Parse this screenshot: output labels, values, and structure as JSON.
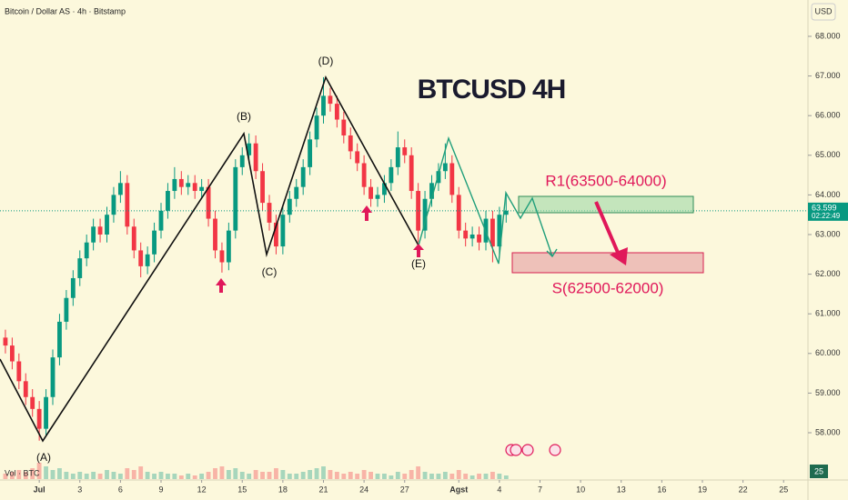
{
  "chart_data": {
    "type": "candlestick",
    "title": "Bitcoin / Dollar AS · 4h · Bitstamp",
    "currency": "USD",
    "annotation": "BTCUSD 4H",
    "resistance_label": "R1(63500-64000)",
    "support_label": "S(62500-62000)",
    "wave_labels": [
      "(A)",
      "(B)",
      "(C)",
      "(D)",
      "(E)"
    ],
    "volume_label": "Vol · BTC",
    "corner_label": "25",
    "last_price": {
      "value": 63599,
      "label": "63.599"
    },
    "countdown": "02:22:49",
    "up_color": "#089981",
    "down_color": "#f23645",
    "grid": false,
    "xlim": [
      -2.9,
      56.8
    ],
    "ylim": [
      57335,
      68917
    ],
    "xticks": [
      {
        "value": 0,
        "label": "Jul"
      },
      3,
      6,
      9,
      12,
      15,
      18,
      21,
      24,
      27,
      {
        "value": 31,
        "label": "Agst"
      },
      {
        "value": 34,
        "label": "4"
      },
      {
        "value": 37,
        "label": "7"
      },
      {
        "value": 40,
        "label": "10"
      },
      {
        "value": 43,
        "label": "13"
      },
      {
        "value": 46,
        "label": "16"
      },
      {
        "value": 49,
        "label": "19"
      },
      {
        "value": 52,
        "label": "22"
      },
      {
        "value": 55,
        "label": "25"
      }
    ],
    "yticks": [
      {
        "value": 58000,
        "label": "58.000"
      },
      {
        "value": 59000,
        "label": "59.000"
      },
      {
        "value": 60000,
        "label": "60.000"
      },
      {
        "value": 61000,
        "label": "61.000"
      },
      {
        "value": 62000,
        "label": "62.000"
      },
      {
        "value": 63000,
        "label": "63.000"
      },
      {
        "value": 64000,
        "label": "64.000"
      },
      {
        "value": 65000,
        "label": "65.000"
      },
      {
        "value": 66000,
        "label": "66.000"
      },
      {
        "value": 67000,
        "label": "67.000"
      },
      {
        "value": 68000,
        "label": "68.000"
      }
    ],
    "x": [
      -2.5,
      -2,
      -1.5,
      -1,
      -0.5,
      0,
      0.5,
      1,
      1.5,
      2,
      2.5,
      3,
      3.5,
      4,
      4.5,
      5,
      5.5,
      6,
      6.5,
      7,
      7.5,
      8,
      8.5,
      9,
      9.5,
      10,
      10.5,
      11,
      11.5,
      12,
      12.5,
      13,
      13.5,
      14,
      14.5,
      15,
      15.5,
      16,
      16.5,
      17,
      17.5,
      18,
      18.5,
      19,
      19.5,
      20,
      20.5,
      21,
      21.5,
      22,
      22.5,
      23,
      23.5,
      24,
      24.5,
      25,
      25.5,
      26,
      26.5,
      27,
      27.5,
      28,
      28.5,
      29,
      29.5,
      30,
      30.5,
      31,
      31.5,
      32,
      32.5,
      33,
      33.5,
      34,
      34.5
    ],
    "open": [
      60400,
      60200,
      59800,
      59300,
      58900,
      58600,
      58100,
      58900,
      59900,
      60800,
      61400,
      61900,
      62400,
      62800,
      63200,
      63000,
      63500,
      64000,
      64300,
      63200,
      62600,
      62200,
      62500,
      63100,
      63600,
      64100,
      64400,
      64200,
      64300,
      64100,
      64200,
      63400,
      62600,
      62300,
      63100,
      64700,
      65000,
      65300,
      64600,
      63800,
      63300,
      62700,
      63500,
      63900,
      64200,
      64700,
      65400,
      66000,
      66500,
      66300,
      65900,
      65500,
      65100,
      64800,
      64200,
      63900,
      64000,
      64300,
      64700,
      65200,
      65000,
      64100,
      63100,
      63900,
      64300,
      64600,
      64800,
      64000,
      63100,
      62900,
      63000,
      62800,
      63400,
      62700,
      63500
    ],
    "high": [
      60600,
      60400,
      60000,
      59500,
      59100,
      58800,
      59100,
      60100,
      61000,
      61600,
      62100,
      62600,
      63000,
      63400,
      63400,
      63700,
      64200,
      64600,
      64500,
      63400,
      62800,
      62700,
      63300,
      63800,
      64300,
      64700,
      64600,
      64500,
      64500,
      64400,
      64400,
      63600,
      62800,
      63300,
      64900,
      65200,
      65550,
      65500,
      64800,
      64000,
      63500,
      63700,
      64100,
      64400,
      64900,
      65600,
      66200,
      66970,
      66700,
      66500,
      66100,
      65700,
      65300,
      65000,
      64400,
      64200,
      64500,
      64900,
      65600,
      65400,
      65200,
      64300,
      64100,
      64500,
      64800,
      65300,
      65000,
      64200,
      63300,
      63200,
      63200,
      63600,
      63600,
      63700,
      64000
    ],
    "low": [
      60000,
      59600,
      59100,
      58700,
      58400,
      57800,
      57900,
      58700,
      59700,
      60600,
      61200,
      61700,
      62200,
      62600,
      62800,
      62800,
      63300,
      63800,
      63000,
      62400,
      61920,
      62000,
      62300,
      62900,
      63400,
      63900,
      64000,
      64000,
      63900,
      63900,
      63200,
      62400,
      62040,
      62100,
      62900,
      64500,
      64800,
      64400,
      63600,
      63100,
      62500,
      62500,
      63300,
      63700,
      64000,
      64500,
      65200,
      65800,
      66100,
      65700,
      65300,
      64900,
      64600,
      64000,
      63700,
      63700,
      63800,
      64100,
      64500,
      64800,
      63900,
      62800,
      62900,
      63700,
      64100,
      64400,
      63800,
      62900,
      62700,
      62700,
      62600,
      62600,
      62300,
      62500,
      63300
    ],
    "close": [
      60200,
      59800,
      59300,
      58900,
      58600,
      58100,
      58900,
      59900,
      60800,
      61400,
      61900,
      62400,
      62800,
      63200,
      63000,
      63500,
      64000,
      64300,
      63200,
      62600,
      62200,
      62500,
      63100,
      63600,
      64100,
      64400,
      64200,
      64300,
      64100,
      64200,
      63400,
      62600,
      62300,
      63100,
      64700,
      65000,
      65300,
      64600,
      63800,
      63300,
      62700,
      63500,
      63900,
      64200,
      64700,
      65400,
      66000,
      66500,
      66300,
      65900,
      65500,
      65100,
      64800,
      64200,
      63900,
      64000,
      64300,
      64700,
      65200,
      65000,
      64100,
      63100,
      63900,
      64300,
      64600,
      64800,
      64000,
      63100,
      62900,
      63000,
      62800,
      63400,
      62700,
      63500,
      63599
    ],
    "volume": [
      3,
      4,
      5,
      4,
      6,
      9,
      7,
      5,
      6,
      4,
      3,
      4,
      3,
      4,
      3,
      5,
      4,
      3,
      6,
      5,
      7,
      4,
      3,
      4,
      3,
      3,
      2,
      3,
      2,
      3,
      4,
      6,
      7,
      5,
      6,
      4,
      3,
      5,
      4,
      4,
      6,
      5,
      3,
      3,
      4,
      5,
      6,
      7,
      5,
      4,
      3,
      4,
      3,
      5,
      4,
      3,
      3,
      2,
      4,
      3,
      5,
      7,
      4,
      3,
      3,
      4,
      3,
      5,
      3,
      2,
      3,
      3,
      4,
      3,
      2
    ]
  }
}
